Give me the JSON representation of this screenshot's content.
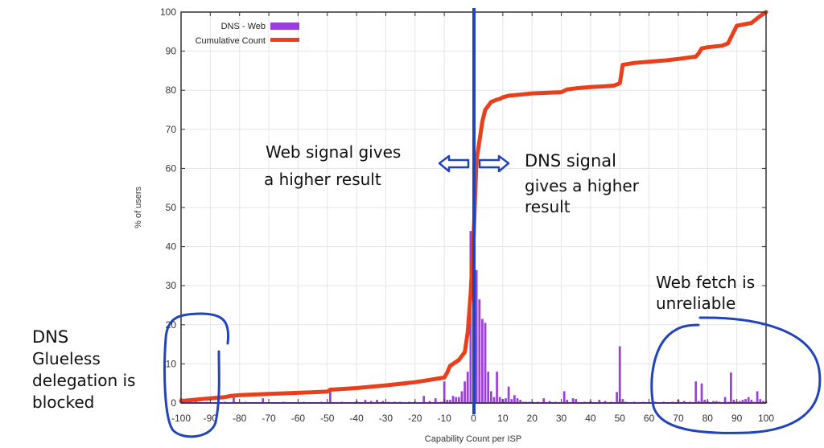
{
  "chart_data": {
    "type": "bar",
    "title": "",
    "xlabel": "Capability Count per ISP",
    "ylabel": "% of users",
    "xlim": [
      -100,
      100
    ],
    "ylim": [
      0,
      100
    ],
    "x_ticks": [
      -100,
      -90,
      -80,
      -70,
      -60,
      -50,
      -40,
      -30,
      -20,
      -10,
      0,
      10,
      20,
      30,
      40,
      50,
      60,
      70,
      80,
      90,
      100
    ],
    "y_ticks": [
      0,
      10,
      20,
      30,
      40,
      50,
      60,
      70,
      80,
      90,
      100
    ],
    "grid": true,
    "legend_position": "top-left",
    "legend": [
      "DNS - Web",
      "Cumulative Count"
    ],
    "series": [
      {
        "name": "DNS - Web",
        "type": "bar",
        "color": "#9b3fdc",
        "x": [
          -100,
          -95,
          -91,
          -85,
          -82,
          -78,
          -72,
          -65,
          -58,
          -52,
          -49,
          -45,
          -40,
          -37,
          -35,
          -33,
          -31,
          -29,
          -27,
          -25,
          -22,
          -20,
          -17,
          -15,
          -13,
          -11,
          -10,
          -9,
          -8,
          -7,
          -6,
          -5,
          -4,
          -3,
          -2,
          -1,
          0,
          1,
          2,
          3,
          4,
          5,
          6,
          7,
          8,
          9,
          10,
          11,
          12,
          13,
          14,
          15,
          16,
          17,
          18,
          19,
          20,
          22,
          24,
          26,
          28,
          31,
          32,
          34,
          35,
          38,
          40,
          43,
          45,
          47,
          49,
          50,
          51,
          52,
          55,
          58,
          62,
          65,
          68,
          70,
          72,
          74,
          76,
          77,
          78,
          79,
          80,
          82,
          83,
          84,
          86,
          87,
          88,
          89,
          90,
          91,
          92,
          93,
          94,
          95,
          96,
          97,
          98,
          99,
          100
        ],
        "values": [
          1.2,
          0.4,
          0.3,
          0.3,
          1.5,
          0.3,
          1.2,
          0.3,
          0.3,
          0.3,
          3.2,
          0.3,
          0.5,
          0.8,
          0.5,
          0.8,
          0.5,
          0.3,
          0.3,
          0.3,
          0.3,
          0.3,
          1.8,
          0.5,
          1.2,
          0.3,
          5.5,
          0.8,
          0.8,
          1.8,
          1.5,
          1.5,
          3.0,
          5.5,
          8.0,
          44.0,
          44.0,
          34.0,
          26.5,
          21.5,
          20.5,
          8.0,
          3.0,
          1.5,
          8.0,
          1.5,
          1.0,
          1.2,
          4.2,
          1.0,
          2.0,
          1.2,
          0.8,
          0.3,
          0.3,
          0.3,
          0.3,
          0.3,
          1.2,
          0.5,
          0.3,
          3.0,
          0.8,
          1.2,
          1.0,
          0.3,
          0.5,
          0.8,
          0.5,
          0.3,
          2.8,
          14.5,
          1.0,
          0.3,
          0.3,
          0.3,
          0.3,
          0.3,
          0.3,
          0.8,
          0.5,
          0.3,
          5.5,
          0.5,
          5.0,
          0.8,
          0.5,
          0.5,
          0.5,
          0.3,
          1.5,
          0.3,
          7.8,
          0.8,
          0.3,
          0.5,
          0.8,
          1.0,
          1.5,
          0.8,
          0.3,
          3.0,
          1.0,
          0.5,
          0.5
        ]
      },
      {
        "name": "Cumulative Count",
        "type": "line",
        "color": "#e8401c",
        "x": [
          -100,
          -90,
          -85,
          -83,
          -80,
          -70,
          -60,
          -50,
          -49,
          -40,
          -30,
          -20,
          -15,
          -10,
          -9,
          -8,
          -5,
          -3,
          -2,
          -1,
          0,
          0.5,
          1,
          2,
          3,
          4,
          5,
          6,
          7,
          8,
          9,
          10,
          12,
          15,
          20,
          30,
          32,
          35,
          40,
          45,
          48,
          50,
          51,
          55,
          60,
          65,
          70,
          75,
          76,
          77,
          78,
          80,
          85,
          86,
          87,
          90,
          95,
          98,
          100
        ],
        "values": [
          0.5,
          1.2,
          1.5,
          1.8,
          2.0,
          2.3,
          2.6,
          2.9,
          3.4,
          3.8,
          4.5,
          5.3,
          5.9,
          6.5,
          7.8,
          9.5,
          11,
          13,
          18,
          28,
          42,
          52,
          62,
          67,
          72,
          75,
          76,
          77,
          77.3,
          77.6,
          77.8,
          78.2,
          78.6,
          78.8,
          79.2,
          79.5,
          80.2,
          80.5,
          80.8,
          81.0,
          81.2,
          81.8,
          86.5,
          87.0,
          87.3,
          87.6,
          88.0,
          88.5,
          88.6,
          89.5,
          90.7,
          91.0,
          91.4,
          91.7,
          92.0,
          96.5,
          97.2,
          99.0,
          100
        ]
      }
    ],
    "reference_line": {
      "x": 0,
      "color": "#2244bb"
    }
  },
  "annotations": {
    "web_higher": [
      "Web signal gives",
      "a higher result"
    ],
    "dns_higher": [
      "DNS signal",
      "gives a higher",
      "result"
    ],
    "web_unreliable": [
      "Web fetch is",
      "unreliable"
    ],
    "dns_glueless": [
      "DNS",
      "Glueless",
      "delegation is",
      "blocked"
    ]
  },
  "colors": {
    "bars": "#9b3fdc",
    "cumulative": "#e8401c",
    "annotation_ink": "#2244bb",
    "axis": "#333333",
    "grid": "#e6e6e6"
  }
}
